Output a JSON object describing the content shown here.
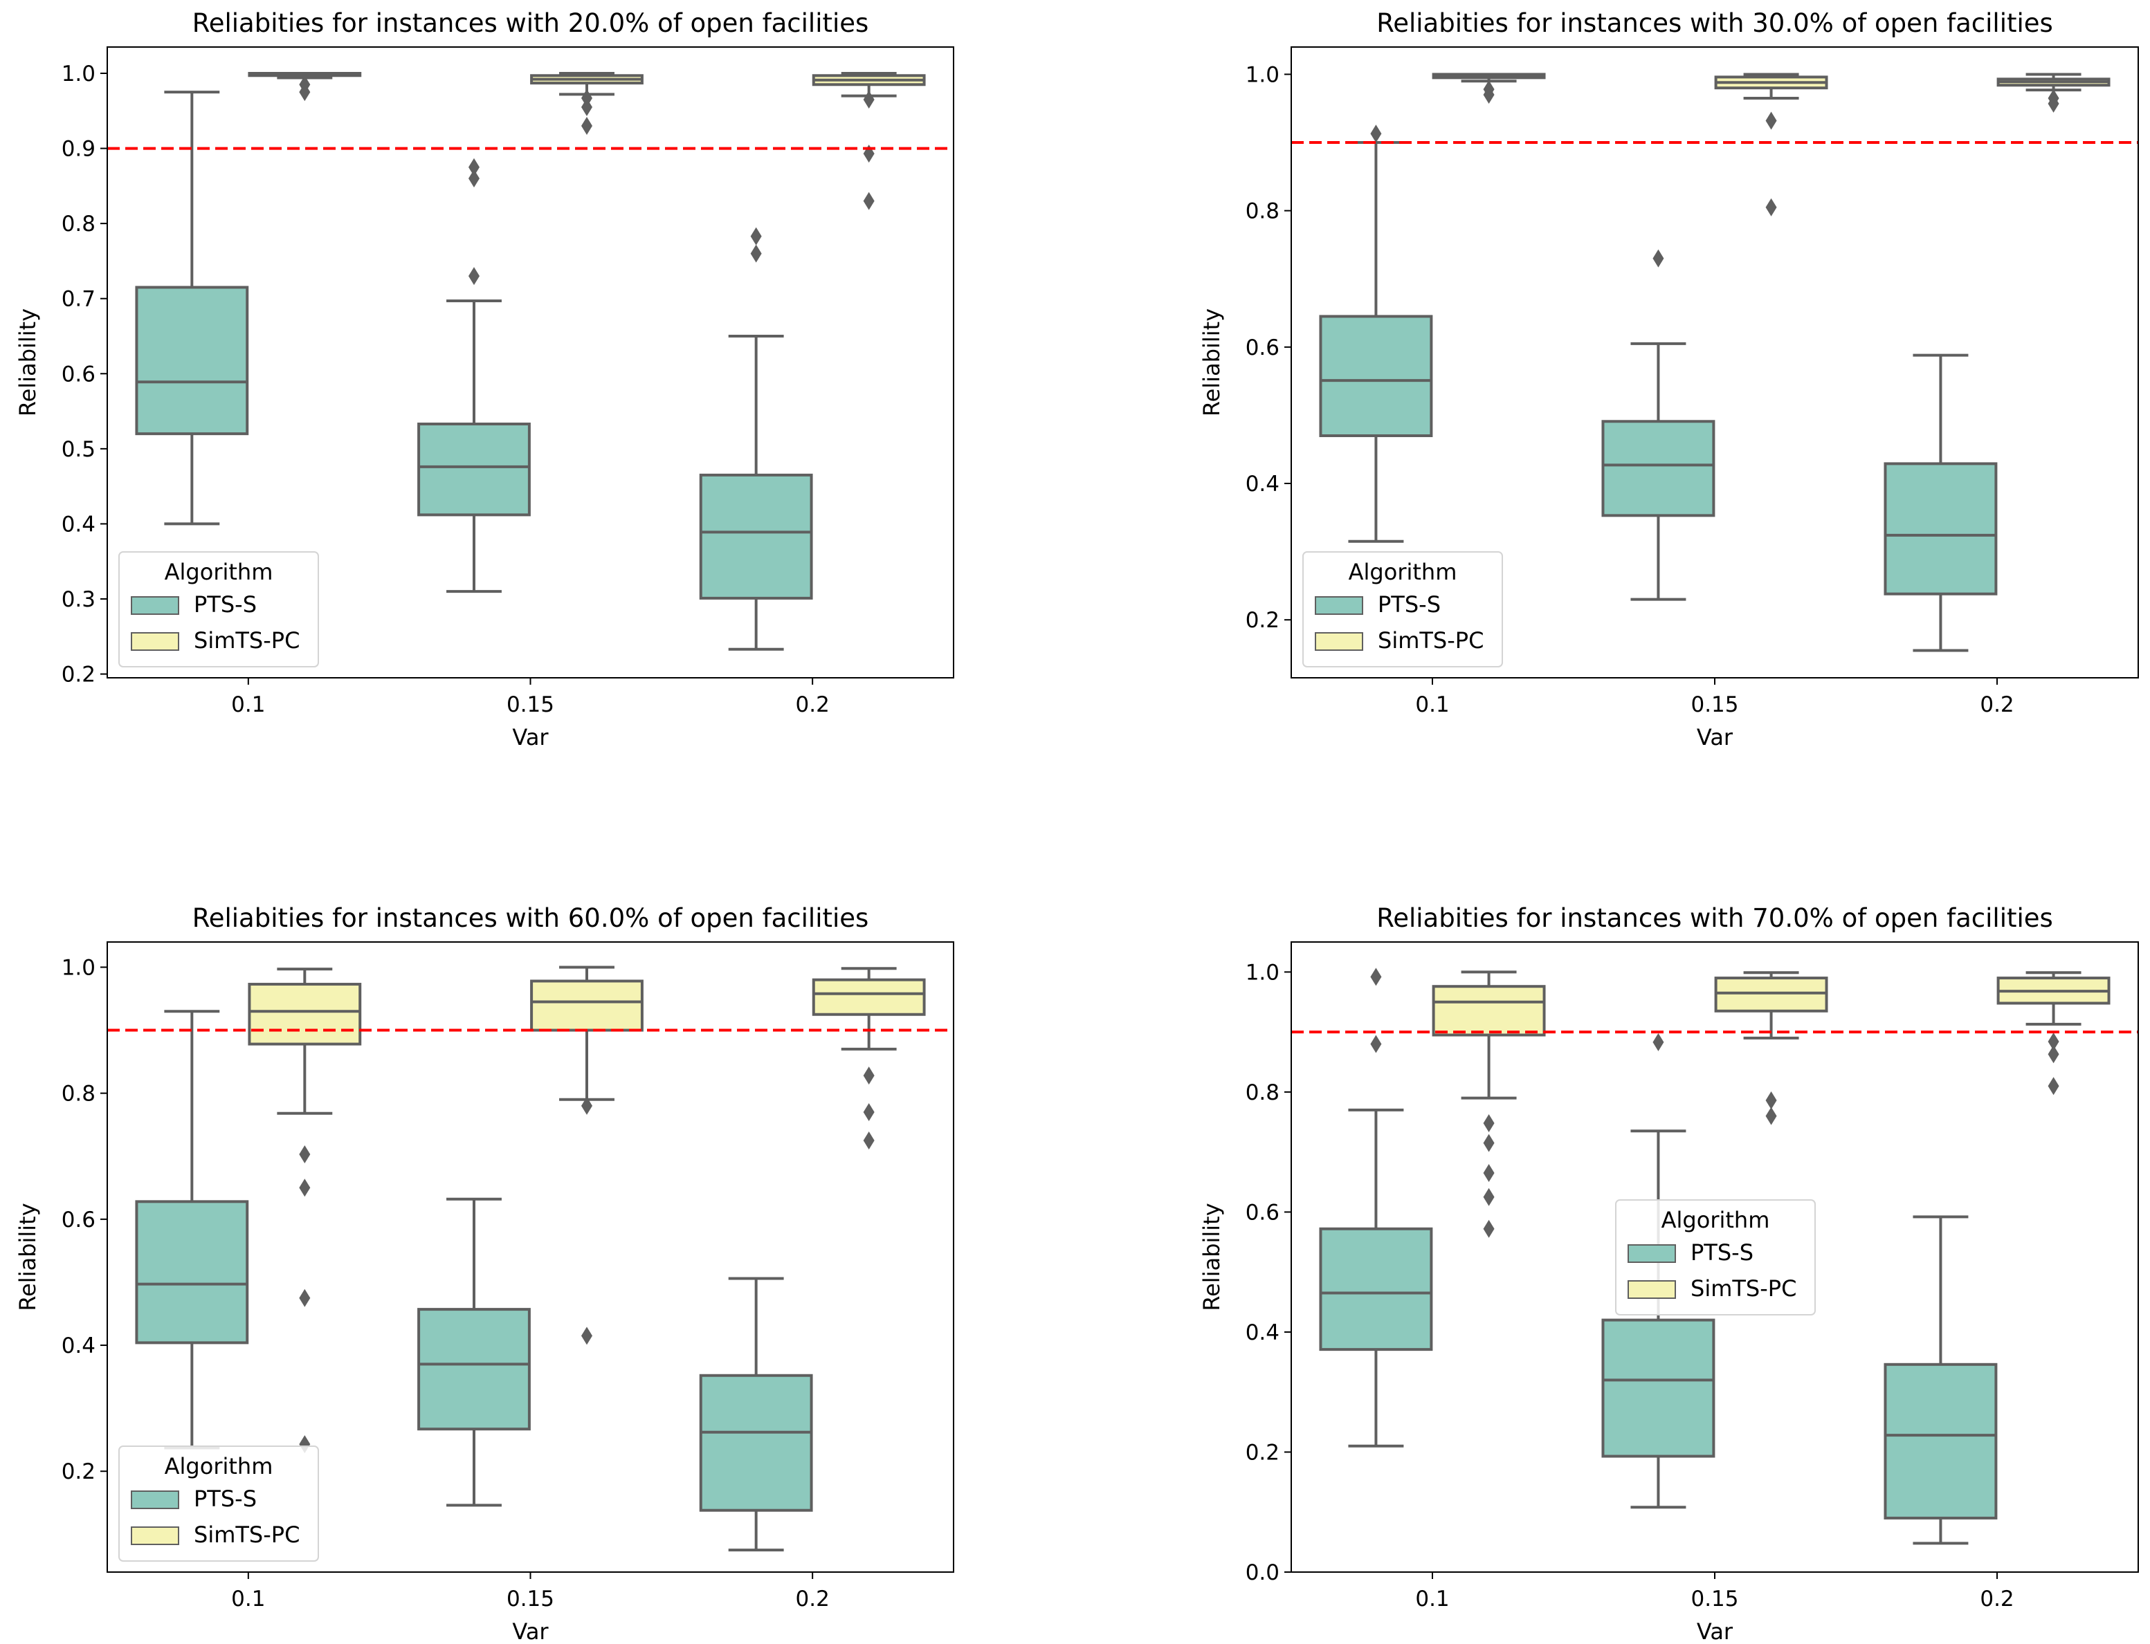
{
  "figure": {
    "colors": {
      "pts_s": "#8dc9bd",
      "simts_pc": "#f5f3b4",
      "line": "#5f5f5f",
      "threshold": "#ff0000"
    }
  },
  "chart_data": [
    {
      "type": "box",
      "title": "Reliabities for instances with 20.0% of open facilities",
      "xlabel": "Var",
      "ylabel": "Reliability",
      "categories": [
        "0.1",
        "0.15",
        "0.2"
      ],
      "ylim": [
        0.195,
        1.035
      ],
      "yticks": [
        0.2,
        0.3,
        0.4,
        0.5,
        0.6,
        0.7,
        0.8,
        0.9,
        1.0
      ],
      "ytick_labels": [
        "0.2",
        "0.3",
        "0.4",
        "0.5",
        "0.6",
        "0.7",
        "0.8",
        "0.9",
        "1.0"
      ],
      "threshold": 0.9,
      "legend": {
        "title": "Algorithm",
        "entries": [
          "PTS-S",
          "SimTS-PC"
        ],
        "position": "lower-left"
      },
      "series": [
        {
          "name": "PTS-S",
          "boxes": [
            {
              "whislo": 0.4,
              "q1": 0.52,
              "med": 0.589,
              "q3": 0.715,
              "whishi": 0.975,
              "fliers": []
            },
            {
              "whislo": 0.31,
              "q1": 0.412,
              "med": 0.476,
              "q3": 0.533,
              "whishi": 0.697,
              "fliers": [
                0.73,
                0.86,
                0.875
              ]
            },
            {
              "whislo": 0.233,
              "q1": 0.301,
              "med": 0.389,
              "q3": 0.465,
              "whishi": 0.65,
              "fliers": [
                0.76,
                0.783
              ]
            }
          ]
        },
        {
          "name": "SimTS-PC",
          "boxes": [
            {
              "whislo": 0.994,
              "q1": 0.997,
              "med": 0.999,
              "q3": 1.0,
              "whishi": 1.0,
              "fliers": [
                0.975,
                0.985
              ]
            },
            {
              "whislo": 0.972,
              "q1": 0.987,
              "med": 0.992,
              "q3": 0.997,
              "whishi": 1.0,
              "fliers": [
                0.93,
                0.955,
                0.967
              ]
            },
            {
              "whislo": 0.97,
              "q1": 0.985,
              "med": 0.991,
              "q3": 0.997,
              "whishi": 1.0,
              "fliers": [
                0.83,
                0.893,
                0.965
              ]
            }
          ]
        }
      ]
    },
    {
      "type": "box",
      "title": "Reliabities for instances with 30.0% of open facilities",
      "xlabel": "Var",
      "ylabel": "Reliability",
      "categories": [
        "0.1",
        "0.15",
        "0.2"
      ],
      "ylim": [
        0.115,
        1.04
      ],
      "yticks": [
        0.2,
        0.4,
        0.6,
        0.8,
        1.0
      ],
      "ytick_labels": [
        "0.2",
        "0.4",
        "0.6",
        "0.8",
        "1.0"
      ],
      "threshold": 0.9,
      "legend": {
        "title": "Algorithm",
        "entries": [
          "PTS-S",
          "SimTS-PC"
        ],
        "position": "lower-left"
      },
      "series": [
        {
          "name": "PTS-S",
          "boxes": [
            {
              "whislo": 0.315,
              "q1": 0.47,
              "med": 0.551,
              "q3": 0.645,
              "whishi": 0.9,
              "fliers": [
                0.913
              ]
            },
            {
              "whislo": 0.23,
              "q1": 0.353,
              "med": 0.427,
              "q3": 0.491,
              "whishi": 0.605,
              "fliers": [
                0.73
              ]
            },
            {
              "whislo": 0.155,
              "q1": 0.238,
              "med": 0.324,
              "q3": 0.429,
              "whishi": 0.588,
              "fliers": []
            }
          ]
        },
        {
          "name": "SimTS-PC",
          "boxes": [
            {
              "whislo": 0.99,
              "q1": 0.995,
              "med": 0.998,
              "q3": 1.0,
              "whishi": 1.0,
              "fliers": [
                0.97,
                0.978
              ]
            },
            {
              "whislo": 0.965,
              "q1": 0.98,
              "med": 0.988,
              "q3": 0.996,
              "whishi": 1.0,
              "fliers": [
                0.805,
                0.932
              ]
            },
            {
              "whislo": 0.977,
              "q1": 0.984,
              "med": 0.989,
              "q3": 0.993,
              "whishi": 1.0,
              "fliers": [
                0.957,
                0.965
              ]
            }
          ]
        }
      ]
    },
    {
      "type": "box",
      "title": "Reliabities for instances with 60.0% of open facilities",
      "xlabel": "Var",
      "ylabel": "Reliability",
      "categories": [
        "0.1",
        "0.15",
        "0.2"
      ],
      "ylim": [
        0.04,
        1.04
      ],
      "yticks": [
        0.2,
        0.4,
        0.6,
        0.8,
        1.0
      ],
      "ytick_labels": [
        "0.2",
        "0.4",
        "0.6",
        "0.8",
        "1.0"
      ],
      "threshold": 0.9,
      "legend": {
        "title": "Algorithm",
        "entries": [
          "PTS-S",
          "SimTS-PC"
        ],
        "position": "lower-left"
      },
      "series": [
        {
          "name": "PTS-S",
          "boxes": [
            {
              "whislo": 0.237,
              "q1": 0.404,
              "med": 0.497,
              "q3": 0.628,
              "whishi": 0.93,
              "fliers": []
            },
            {
              "whislo": 0.146,
              "q1": 0.267,
              "med": 0.37,
              "q3": 0.457,
              "whishi": 0.632,
              "fliers": []
            },
            {
              "whislo": 0.075,
              "q1": 0.138,
              "med": 0.262,
              "q3": 0.352,
              "whishi": 0.506,
              "fliers": []
            }
          ]
        },
        {
          "name": "SimTS-PC",
          "boxes": [
            {
              "whislo": 0.768,
              "q1": 0.878,
              "med": 0.93,
              "q3": 0.973,
              "whishi": 0.997,
              "fliers": [
                0.243,
                0.475,
                0.65,
                0.703
              ]
            },
            {
              "whislo": 0.79,
              "q1": 0.9,
              "med": 0.945,
              "q3": 0.978,
              "whishi": 1.0,
              "fliers": [
                0.415,
                0.78
              ]
            },
            {
              "whislo": 0.87,
              "q1": 0.925,
              "med": 0.958,
              "q3": 0.98,
              "whishi": 0.998,
              "fliers": [
                0.725,
                0.77,
                0.828
              ]
            }
          ]
        }
      ]
    },
    {
      "type": "box",
      "title": "Reliabities for instances with 70.0% of open facilities",
      "xlabel": "Var",
      "ylabel": "Reliability",
      "categories": [
        "0.1",
        "0.15",
        "0.2"
      ],
      "ylim": [
        0.0,
        1.05
      ],
      "yticks": [
        0.0,
        0.2,
        0.4,
        0.6,
        0.8,
        1.0
      ],
      "ytick_labels": [
        "0.0",
        "0.2",
        "0.4",
        "0.6",
        "0.8",
        "1.0"
      ],
      "threshold": 0.9,
      "legend": {
        "title": "Algorithm",
        "entries": [
          "PTS-S",
          "SimTS-PC"
        ],
        "position": "center"
      },
      "series": [
        {
          "name": "PTS-S",
          "boxes": [
            {
              "whislo": 0.21,
              "q1": 0.371,
              "med": 0.465,
              "q3": 0.572,
              "whishi": 0.77,
              "fliers": [
                0.88,
                0.992
              ]
            },
            {
              "whislo": 0.108,
              "q1": 0.193,
              "med": 0.32,
              "q3": 0.42,
              "whishi": 0.735,
              "fliers": [
                0.883
              ]
            },
            {
              "whislo": 0.048,
              "q1": 0.09,
              "med": 0.228,
              "q3": 0.346,
              "whishi": 0.592,
              "fliers": []
            }
          ]
        },
        {
          "name": "SimTS-PC",
          "boxes": [
            {
              "whislo": 0.79,
              "q1": 0.895,
              "med": 0.95,
              "q3": 0.976,
              "whishi": 1.0,
              "fliers": [
                0.572,
                0.625,
                0.665,
                0.715,
                0.748
              ]
            },
            {
              "whislo": 0.89,
              "q1": 0.935,
              "med": 0.965,
              "q3": 0.99,
              "whishi": 0.999,
              "fliers": [
                0.76,
                0.786
              ]
            },
            {
              "whislo": 0.913,
              "q1": 0.948,
              "med": 0.968,
              "q3": 0.99,
              "whishi": 0.999,
              "fliers": [
                0.81,
                0.863,
                0.884
              ]
            }
          ]
        }
      ]
    }
  ]
}
